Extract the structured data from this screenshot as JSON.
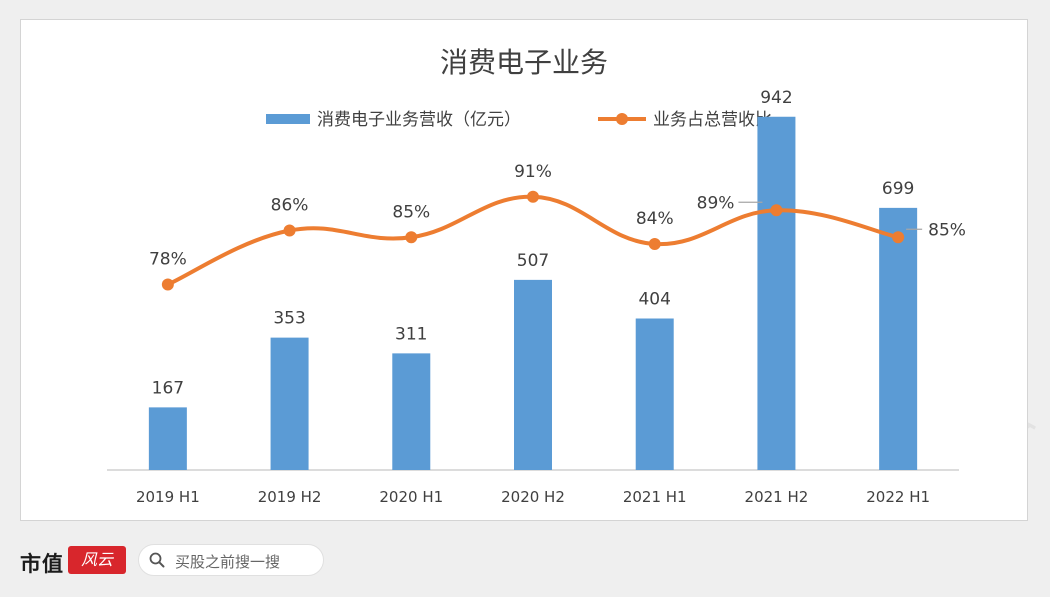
{
  "watermark": "市值风云",
  "footer": {
    "brand_text": "市值",
    "brand_seal": "风云",
    "search_placeholder": "买股之前搜一搜"
  },
  "chart_data": {
    "type": "bar",
    "title": "消费电子业务",
    "categories": [
      "2019 H1",
      "2019 H2",
      "2020 H1",
      "2020 H2",
      "2021 H1",
      "2021 H2",
      "2022 H1"
    ],
    "series": [
      {
        "name": "消费电子业务营收（亿元）",
        "type": "bar",
        "values": [
          167,
          353,
          311,
          507,
          404,
          942,
          699
        ],
        "color": "#5b9bd5",
        "labels": [
          "167",
          "353",
          "311",
          "507",
          "404",
          "942",
          "699"
        ]
      },
      {
        "name": "业务占总营收比",
        "type": "line",
        "smooth": true,
        "values": [
          78,
          86,
          85,
          91,
          84,
          89,
          85
        ],
        "color": "#ed7d31",
        "labels": [
          "78%",
          "86%",
          "85%",
          "91%",
          "84%",
          "89%",
          "85%"
        ]
      }
    ],
    "ylim": [
      0,
      1000
    ],
    "y2lim": [
      60,
      100
    ],
    "grid": false,
    "legend": "top"
  }
}
